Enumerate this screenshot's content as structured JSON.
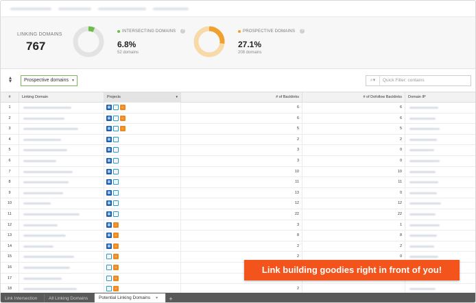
{
  "stats": {
    "linking_domains": {
      "label": "Linking Domains",
      "value": "767"
    },
    "intersecting": {
      "label": "Intersecting Domains",
      "percent": "6.8%",
      "sub": "52 domains",
      "fraction": 0.068,
      "color": "#6bbd45"
    },
    "prospective": {
      "label": "Prospective Domains",
      "percent": "27.1%",
      "sub": "208 domains",
      "fraction": 0.271,
      "color": "#f0a030"
    }
  },
  "toolbar": {
    "dropdown_value": "Prospective domains",
    "filter_placeholder": "Quick Filter: contains"
  },
  "table": {
    "columns": [
      "#",
      "Linking Domain",
      "Projects",
      "# of Backlinks",
      "# of Dofollow Backlinks",
      "Domain IP"
    ],
    "rows": [
      {
        "n": "1",
        "backlinks": "6",
        "dofollow": "6",
        "icons": [
          "blue",
          "cyan",
          "orange"
        ]
      },
      {
        "n": "2",
        "backlinks": "6",
        "dofollow": "6",
        "icons": [
          "blue",
          "cyan",
          "orange"
        ]
      },
      {
        "n": "3",
        "backlinks": "5",
        "dofollow": "5",
        "icons": [
          "blue",
          "cyan",
          "orange"
        ]
      },
      {
        "n": "4",
        "backlinks": "2",
        "dofollow": "2",
        "icons": [
          "blue",
          "cyan"
        ]
      },
      {
        "n": "5",
        "backlinks": "3",
        "dofollow": "0",
        "icons": [
          "blue",
          "cyan"
        ]
      },
      {
        "n": "6",
        "backlinks": "3",
        "dofollow": "0",
        "icons": [
          "blue",
          "cyan"
        ]
      },
      {
        "n": "7",
        "backlinks": "10",
        "dofollow": "10",
        "icons": [
          "blue",
          "cyan"
        ]
      },
      {
        "n": "8",
        "backlinks": "11",
        "dofollow": "11",
        "icons": [
          "blue",
          "cyan"
        ]
      },
      {
        "n": "9",
        "backlinks": "13",
        "dofollow": "0",
        "icons": [
          "blue",
          "cyan"
        ]
      },
      {
        "n": "10",
        "backlinks": "12",
        "dofollow": "12",
        "icons": [
          "blue",
          "cyan"
        ]
      },
      {
        "n": "11",
        "backlinks": "22",
        "dofollow": "22",
        "icons": [
          "blue",
          "cyan"
        ]
      },
      {
        "n": "12",
        "backlinks": "3",
        "dofollow": "1",
        "icons": [
          "blue",
          "orange"
        ]
      },
      {
        "n": "13",
        "backlinks": "8",
        "dofollow": "8",
        "icons": [
          "blue",
          "orange"
        ]
      },
      {
        "n": "14",
        "backlinks": "2",
        "dofollow": "2",
        "icons": [
          "blue",
          "orange"
        ]
      },
      {
        "n": "15",
        "backlinks": "2",
        "dofollow": "0",
        "icons": [
          "cyan",
          "orange"
        ]
      },
      {
        "n": "16",
        "backlinks": "",
        "dofollow": "",
        "icons": [
          "cyan",
          "orange"
        ]
      },
      {
        "n": "17",
        "backlinks": "",
        "dofollow": "",
        "icons": [
          "cyan",
          "orange"
        ]
      },
      {
        "n": "18",
        "backlinks": "2",
        "dofollow": "",
        "icons": [
          "cyan",
          "orange"
        ]
      }
    ]
  },
  "tabs": {
    "items": [
      "Link Intersection",
      "All Linking Domains",
      "Potential Linking Domains"
    ],
    "active_index": 2,
    "add_label": "+"
  },
  "promo": {
    "text": "Link building goodies right in front of you!"
  },
  "icons": {
    "sort": "sort-icon",
    "search": "search-icon",
    "help": "help-icon"
  }
}
